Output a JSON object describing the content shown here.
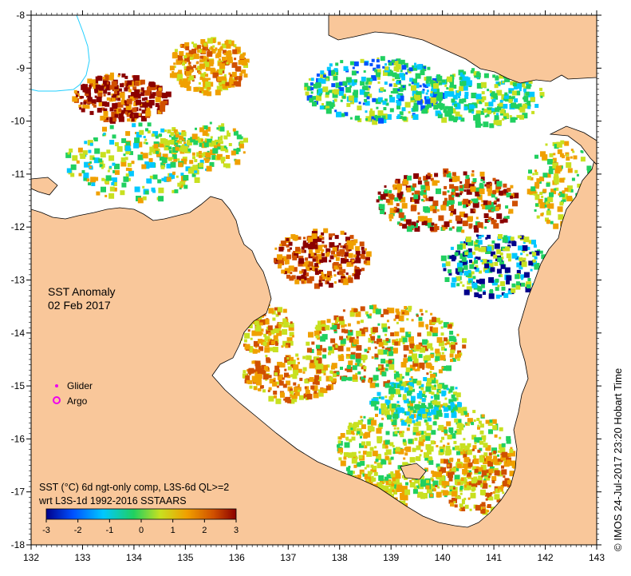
{
  "map": {
    "title_line1": "SST Anomaly",
    "title_line2": "02 Feb 2017",
    "x_ticks": [
      "132",
      "133",
      "134",
      "135",
      "136",
      "137",
      "138",
      "139",
      "140",
      "141",
      "142",
      "143"
    ],
    "y_ticks": [
      "-8",
      "-9",
      "-10",
      "-11",
      "-12",
      "-13",
      "-14",
      "-15",
      "-16",
      "-17",
      "-18"
    ],
    "lon_range": [
      132,
      143
    ],
    "lat_range": [
      -18,
      -8
    ],
    "colors": {
      "land": "#f9c79a",
      "frame": "#000000",
      "river": "#22cfff"
    }
  },
  "legend": {
    "glider_label": "Glider",
    "argo_label": "Argo",
    "glider_color": "#ee00ee",
    "argo_color": "#ee00ee"
  },
  "caption": {
    "line1": "SST (°C) 6d ngt-only comp, L3S-6d QL>=2",
    "line2": "wrt L3S-1d 1992-2016 SSTAARS"
  },
  "colorbar": {
    "ticks": [
      "-3",
      "-2",
      "-1",
      "0",
      "1",
      "2",
      "3"
    ],
    "range": [
      -3,
      3
    ],
    "stops": [
      "#00008b",
      "#0050ff",
      "#00c8ff",
      "#20d060",
      "#c8e020",
      "#f0a000",
      "#d05000",
      "#8b0000"
    ]
  },
  "credit": "© IMOS 24-Jul-2017 23:20 Hobart Time"
}
